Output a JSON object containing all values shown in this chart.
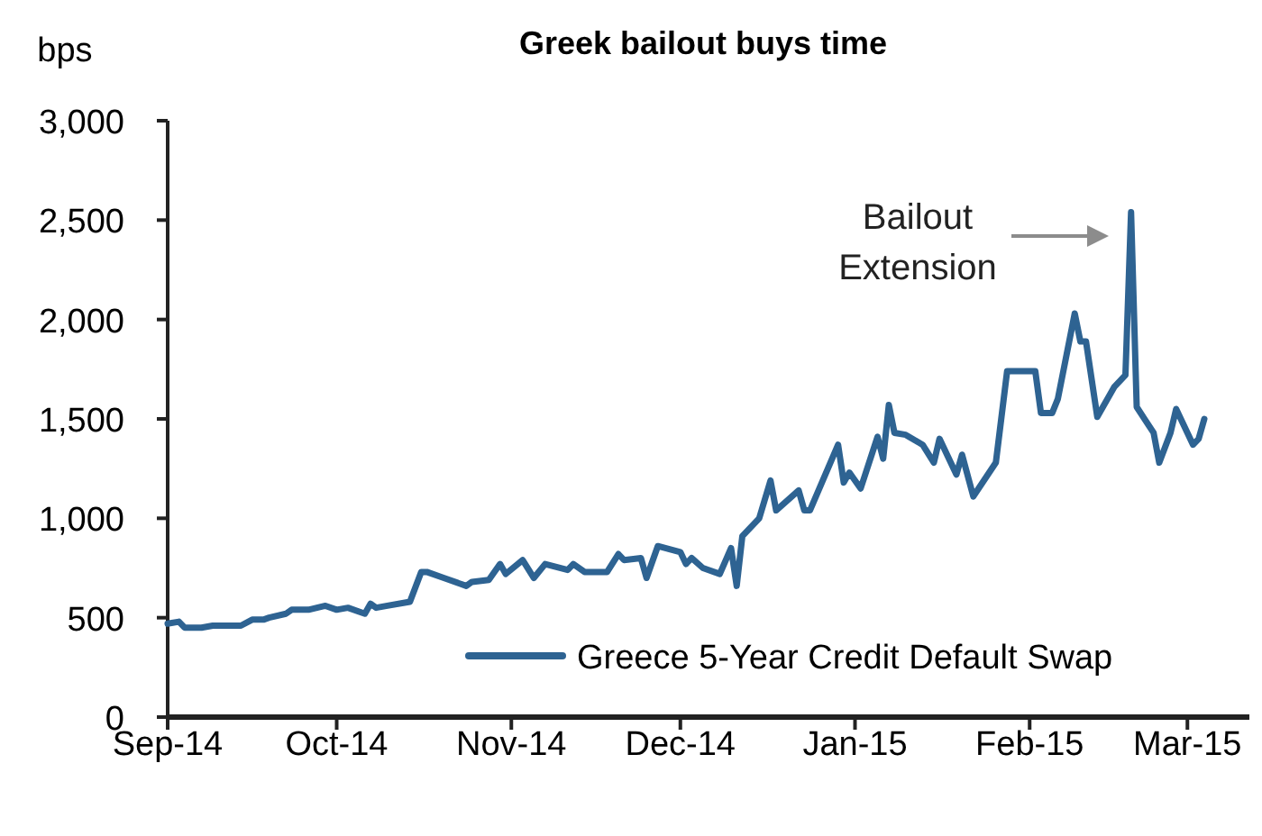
{
  "chart_data": {
    "type": "line",
    "title": "Greek bailout  buys time",
    "ylabel": "bps",
    "x": [
      "2014-09-01",
      "2014-09-03",
      "2014-09-04",
      "2014-09-07",
      "2014-09-09",
      "2014-09-14",
      "2014-09-16",
      "2014-09-18",
      "2014-09-19",
      "2014-09-22",
      "2014-09-23",
      "2014-09-26",
      "2014-09-29",
      "2014-10-01",
      "2014-10-03",
      "2014-10-06",
      "2014-10-07",
      "2014-10-08",
      "2014-10-10",
      "2014-10-14",
      "2014-10-16",
      "2014-10-17",
      "2014-10-20",
      "2014-10-24",
      "2014-10-25",
      "2014-10-28",
      "2014-10-30",
      "2014-10-31",
      "2014-11-03",
      "2014-11-05",
      "2014-11-07",
      "2014-11-11",
      "2014-11-12",
      "2014-11-14",
      "2014-11-18",
      "2014-11-20",
      "2014-11-21",
      "2014-11-24",
      "2014-11-25",
      "2014-11-27",
      "2014-12-01",
      "2014-12-02",
      "2014-12-03",
      "2014-12-05",
      "2014-12-08",
      "2014-12-10",
      "2014-12-11",
      "2014-12-12",
      "2014-12-15",
      "2014-12-17",
      "2014-12-18",
      "2014-12-22",
      "2014-12-23",
      "2014-12-24",
      "2014-12-29",
      "2014-12-30",
      "2014-12-31",
      "2015-01-02",
      "2015-01-05",
      "2015-01-06",
      "2015-01-07",
      "2015-01-08",
      "2015-01-10",
      "2015-01-13",
      "2015-01-15",
      "2015-01-16",
      "2015-01-19",
      "2015-01-20",
      "2015-01-22",
      "2015-01-26",
      "2015-01-28",
      "2015-02-02",
      "2015-02-03",
      "2015-02-05",
      "2015-02-06",
      "2015-02-09",
      "2015-02-10",
      "2015-02-11",
      "2015-02-13",
      "2015-02-16",
      "2015-02-18",
      "2015-02-19",
      "2015-02-20",
      "2015-02-23",
      "2015-02-24",
      "2015-02-26",
      "2015-02-27",
      "2015-03-02",
      "2015-03-03",
      "2015-03-04"
    ],
    "series": [
      {
        "name": "Greece 5-Year Credit Default Swap",
        "color": "#2e6392",
        "values": [
          470,
          480,
          450,
          450,
          460,
          460,
          490,
          490,
          500,
          520,
          540,
          540,
          560,
          540,
          550,
          520,
          570,
          550,
          560,
          580,
          730,
          730,
          700,
          660,
          680,
          690,
          770,
          720,
          790,
          700,
          770,
          740,
          770,
          730,
          730,
          820,
          790,
          800,
          700,
          860,
          830,
          770,
          800,
          750,
          720,
          850,
          660,
          910,
          1000,
          1190,
          1040,
          1140,
          1040,
          1040,
          1370,
          1180,
          1230,
          1150,
          1410,
          1300,
          1570,
          1430,
          1420,
          1370,
          1280,
          1400,
          1220,
          1320,
          1110,
          1280,
          1740,
          1740,
          1530,
          1530,
          1600,
          2030,
          1890,
          1890,
          1510,
          1660,
          1720,
          2540,
          1560,
          1430,
          1280,
          1430,
          1550,
          1370,
          1400,
          1500
        ]
      }
    ],
    "xlim": [
      "2014-09-01",
      "2015-03-12"
    ],
    "xticks": [
      {
        "value": "2014-09-01",
        "label": "Sep-14"
      },
      {
        "value": "2014-10-01",
        "label": "Oct-14"
      },
      {
        "value": "2014-11-01",
        "label": "Nov-14"
      },
      {
        "value": "2014-12-01",
        "label": "Dec-14"
      },
      {
        "value": "2015-01-01",
        "label": "Jan-15"
      },
      {
        "value": "2015-02-01",
        "label": "Feb-15"
      },
      {
        "value": "2015-03-01",
        "label": "Mar-15"
      }
    ],
    "ylim": [
      0,
      3000
    ],
    "yticks": [
      0,
      {
        "value": 500,
        "label": "500"
      },
      {
        "value": 1000,
        "label": "1,000"
      },
      {
        "value": 1500,
        "label": "1,500"
      },
      {
        "value": 2000,
        "label": "2,000"
      },
      {
        "value": 2500,
        "label": "2,500"
      },
      {
        "value": 3000,
        "label": "3,000"
      }
    ],
    "grid": false,
    "legend": "bottom right",
    "marker": "none",
    "line_style": "solid",
    "annotations": [
      "Bailout\nExtension"
    ]
  }
}
